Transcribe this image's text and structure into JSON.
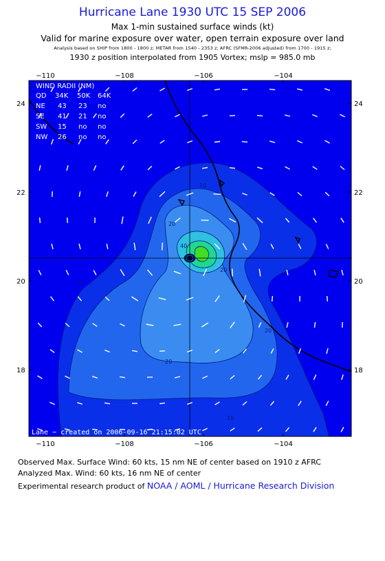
{
  "header": {
    "title": "Hurricane Lane 1930 UTC 15 SEP 2006",
    "subtitle": "Max 1-min sustained surface winds (kt)",
    "validity": "Valid for marine exposure over water, open terrain exposure over land",
    "analysis_sources": "Analysis based on  SHIP from 1800 - 1800 z;  METAR from 1540 - 2353 z;  AFRC (SFMR-2006 adjusted) from 1700 - 1915 z;",
    "position_note": "1930 z position interpolated from 1905 Vortex; mslp = 985.0 mb"
  },
  "map": {
    "lon_ticks": [
      "−110",
      "−108",
      "−106",
      "−104"
    ],
    "lat_ticks": [
      "24",
      "22",
      "20",
      "18"
    ],
    "contour_labels": [
      "10",
      "20",
      "10",
      "20",
      "20",
      "10",
      "20",
      "40"
    ],
    "credit": "Lane − created on 2006-09-16 21:15:02 UTC",
    "wind_radii": {
      "title": "WIND RADII (NM)",
      "header": [
        "QD",
        "34K",
        "50K",
        "64K"
      ],
      "rows": [
        [
          "NE",
          "43",
          "23",
          "no"
        ],
        [
          "SE",
          "41",
          "21",
          "no"
        ],
        [
          "SW",
          "15",
          "no",
          "no"
        ],
        [
          "NW",
          "26",
          "no",
          "no"
        ]
      ]
    },
    "colors": {
      "background": "#0000ee",
      "contour_10": "#0a2fe8",
      "contour_20": "#2266ee",
      "contour_30": "#3a8cf0",
      "contour_40": "#30c0e0",
      "contour_50": "#20d890",
      "contour_60": "#44dd22",
      "coast": "#000000",
      "wind_vector": "#ffffff"
    }
  },
  "footer": {
    "observed": "Observed Max. Surface Wind: 60 kts, 15 nm NE of center based on 1910 z AFRC",
    "analyzed": "Analyzed Max. Wind: 60 kts, 16 nm NE of center",
    "product_prefix": "Experimental research product of ",
    "product_link": "NOAA / AOML / Hurricane Research Division"
  }
}
